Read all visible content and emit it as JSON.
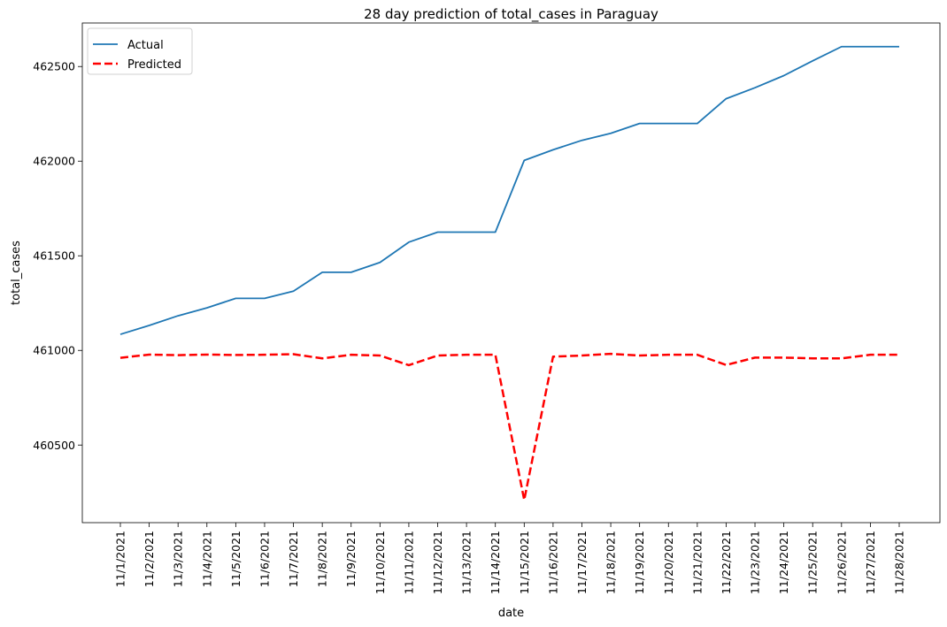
{
  "chart_data": {
    "type": "line",
    "title": "28 day prediction of total_cases in Paraguay",
    "xlabel": "date",
    "ylabel": "total_cases",
    "categories": [
      "11/1/2021",
      "11/2/2021",
      "11/3/2021",
      "11/4/2021",
      "11/5/2021",
      "11/6/2021",
      "11/7/2021",
      "11/8/2021",
      "11/9/2021",
      "11/10/2021",
      "11/11/2021",
      "11/12/2021",
      "11/13/2021",
      "11/14/2021",
      "11/15/2021",
      "11/16/2021",
      "11/17/2021",
      "11/18/2021",
      "11/19/2021",
      "11/20/2021",
      "11/21/2021",
      "11/22/2021",
      "11/23/2021",
      "11/24/2021",
      "11/25/2021",
      "11/26/2021",
      "11/27/2021",
      "11/28/2021"
    ],
    "series": [
      {
        "name": "Actual",
        "color": "#1f77b4",
        "style": "solid",
        "values": [
          461085,
          461132,
          461183,
          461225,
          461275,
          461275,
          461313,
          461413,
          461413,
          461465,
          461572,
          461625,
          461625,
          461625,
          462004,
          462060,
          462110,
          462147,
          462199,
          462199,
          462199,
          462330,
          462388,
          462452,
          462530,
          462605,
          462605,
          462605
        ]
      },
      {
        "name": "Predicted",
        "color": "#ff0000",
        "style": "dashed",
        "values": [
          460961,
          460978,
          460975,
          460978,
          460976,
          460977,
          460980,
          460958,
          460977,
          460973,
          460922,
          460973,
          460977,
          460977,
          460210,
          460967,
          460973,
          460982,
          460973,
          460977,
          460977,
          460923,
          460962,
          460962,
          460958,
          460958,
          460977,
          460977
        ]
      }
    ],
    "yticks": [
      460500,
      461000,
      461500,
      462000,
      462500
    ],
    "ylim": [
      460090,
      462730
    ],
    "legend": "top-left",
    "grid": false
  }
}
